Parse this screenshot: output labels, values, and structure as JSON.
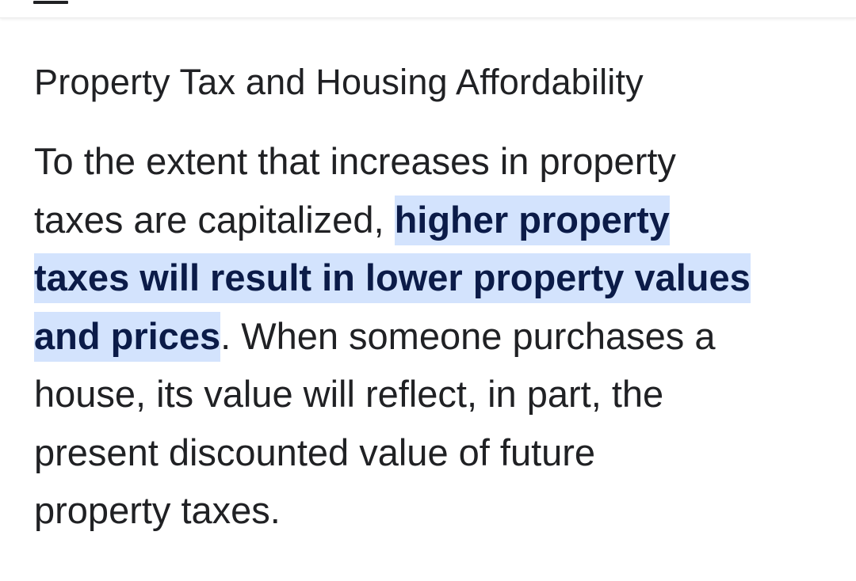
{
  "header": {
    "menu_icon": "menu-icon"
  },
  "article": {
    "heading": "Property Tax and Housing Affordability",
    "paragraph": {
      "line1": "To the extent that increases in property",
      "line2_plain": "taxes are capitalized, ",
      "line2_highlight": "higher property",
      "line3_highlight": "taxes will result in lower property values",
      "line4_highlight": "and prices",
      "line4_plain": ". When someone purchases a",
      "line5": "house, its value will reflect, in part, the",
      "line6": "present discounted value of future",
      "line7": "property taxes."
    },
    "highlight_color": "#d3e3fd",
    "highlight_text_color": "#0b1b48"
  }
}
